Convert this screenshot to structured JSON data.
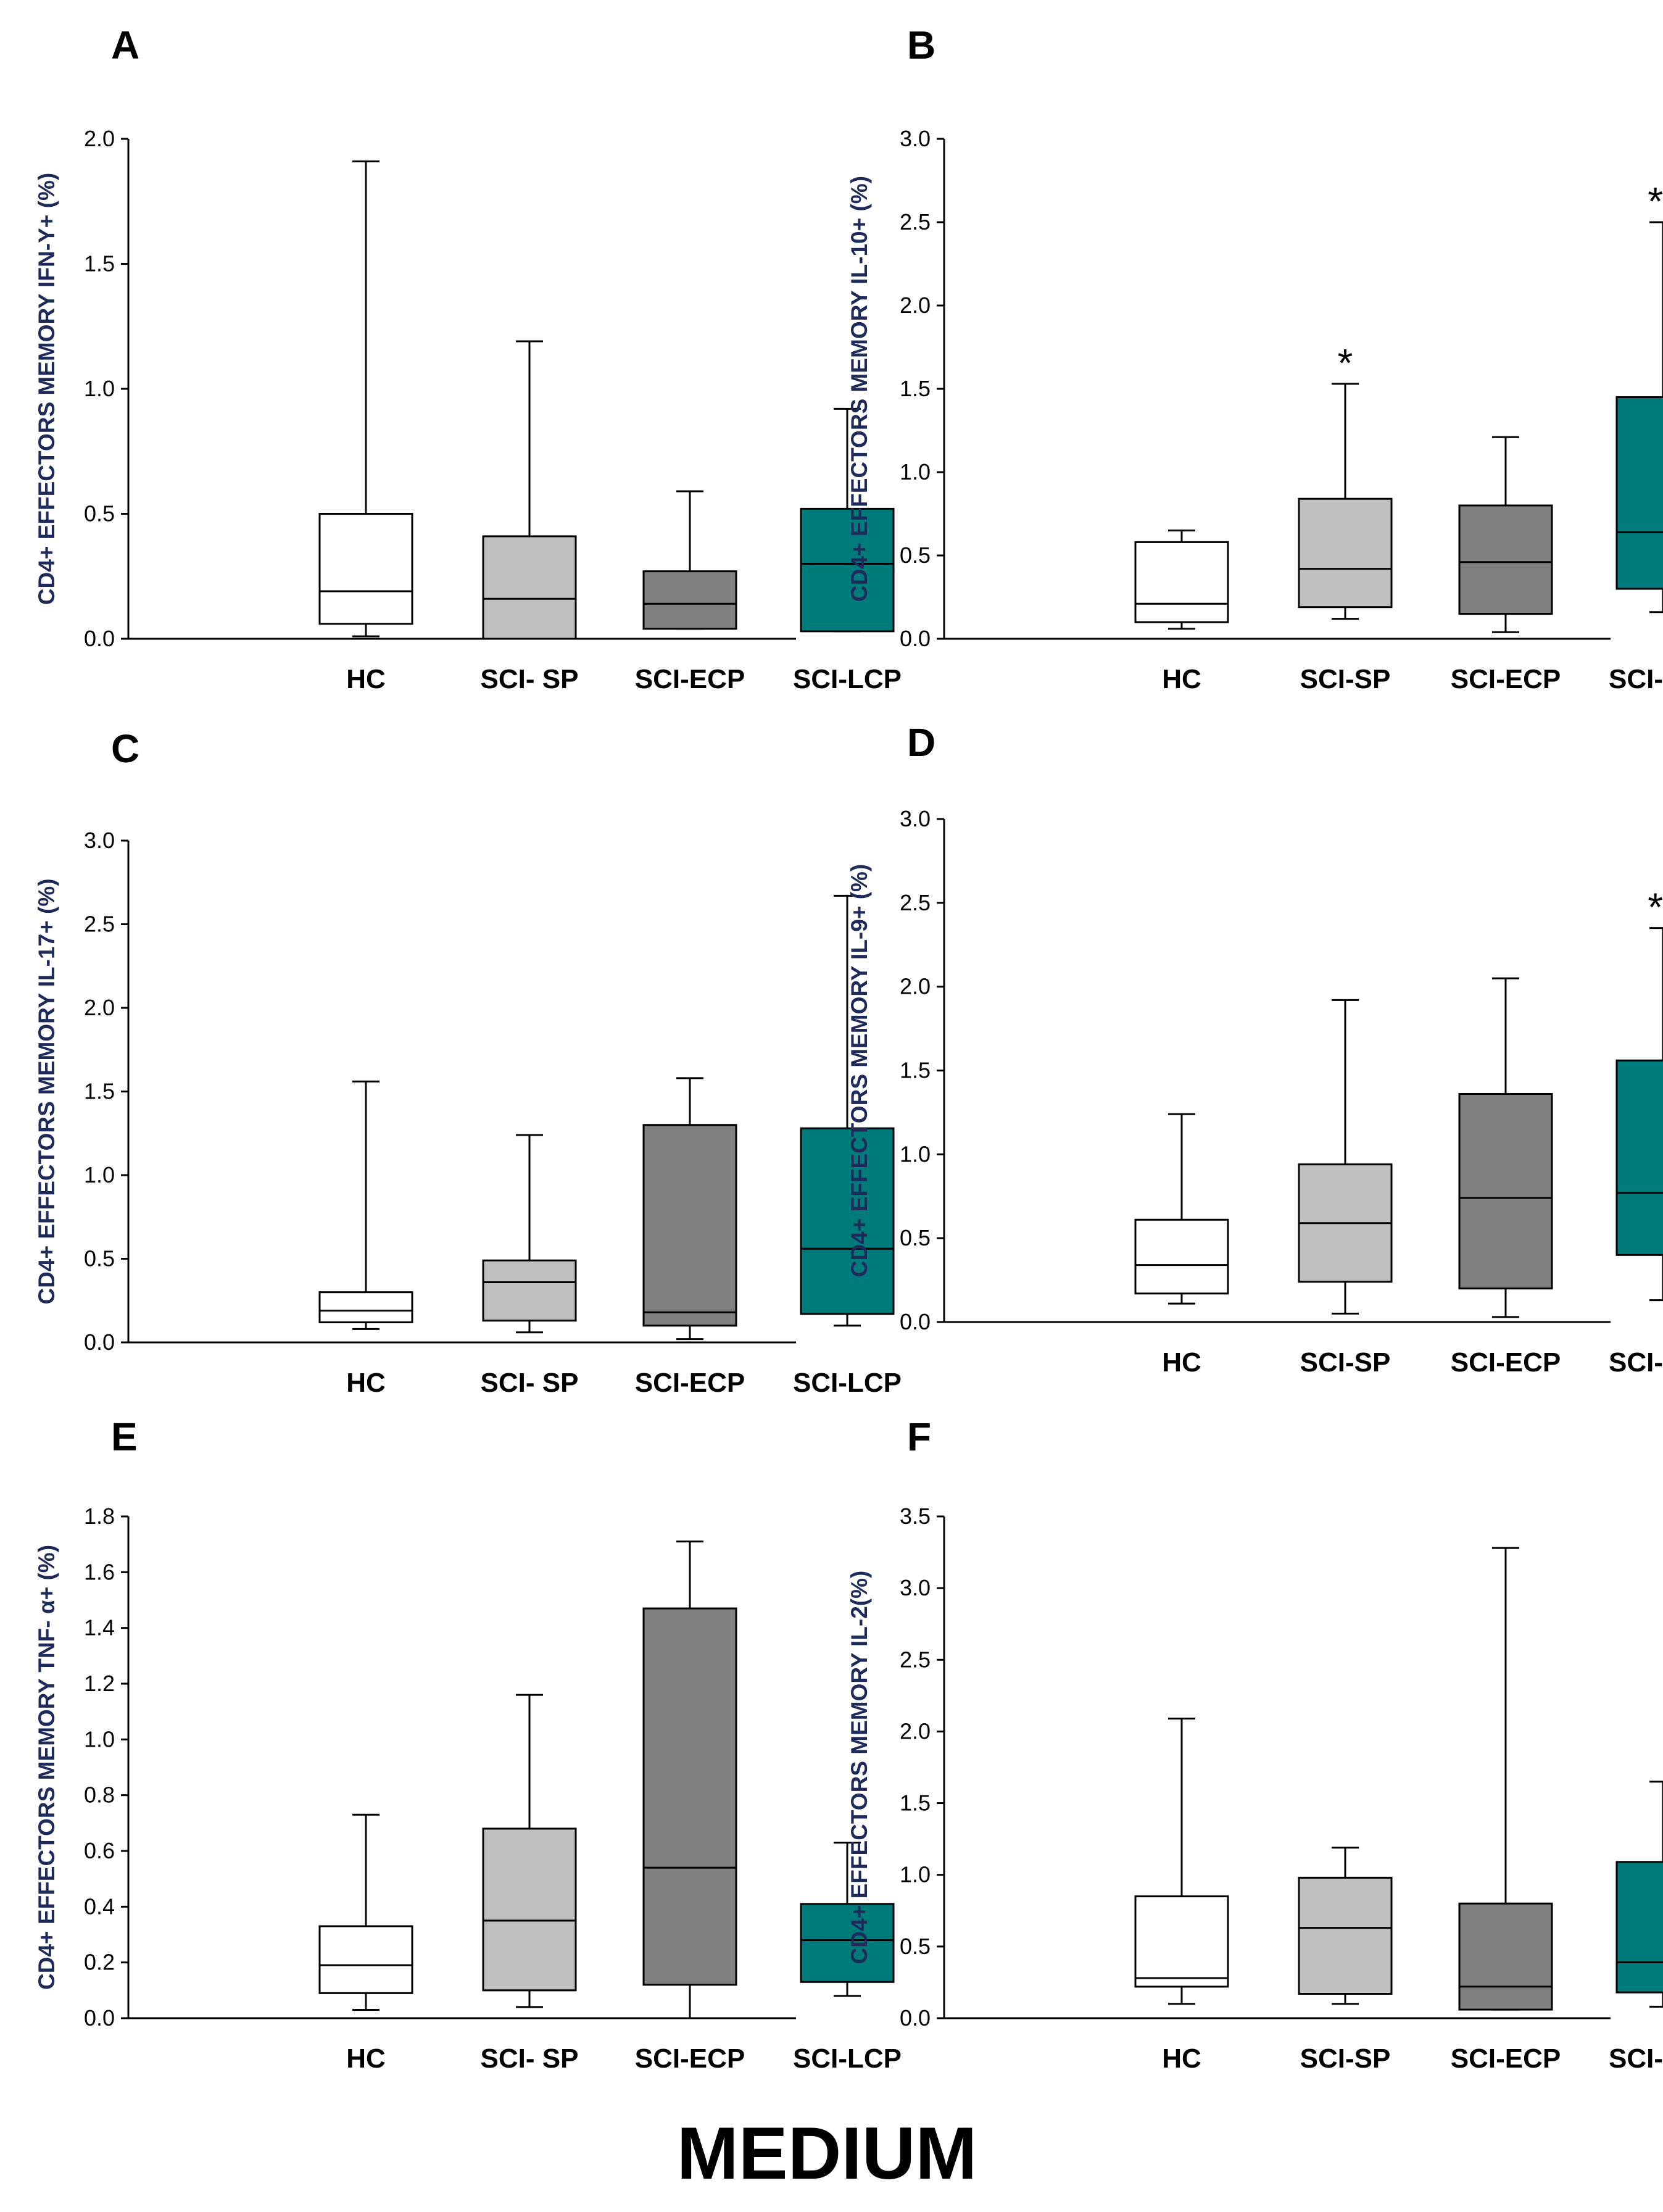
{
  "footer_label": "MEDIUM",
  "colors": {
    "HC": "#ffffff",
    "SCI-SP": "#c0c0c0",
    "SCI-ECP": "#808080",
    "SCI-LCP": "#007b7b",
    "stroke": "#000000"
  },
  "chart_data": [
    {
      "panel": "A",
      "type": "box",
      "ylabel": "CD4+ EFFECTORS MEMORY IFN-Y+ (%)",
      "ylim": [
        0,
        2.0
      ],
      "yticks": [
        "0.0",
        "0.5",
        "1.0",
        "1.5",
        "2.0"
      ],
      "categories": [
        "HC",
        "SCI- SP",
        "SCI-ECP",
        "SCI-LCP"
      ],
      "boxes": [
        {
          "min": 0.01,
          "q1": 0.06,
          "median": 0.19,
          "q3": 0.5,
          "max": 1.91,
          "sig": ""
        },
        {
          "min": 0.0,
          "q1": 0.0,
          "median": 0.16,
          "q3": 0.41,
          "max": 1.19,
          "sig": ""
        },
        {
          "min": 0.04,
          "q1": 0.04,
          "median": 0.14,
          "q3": 0.27,
          "max": 0.59,
          "sig": ""
        },
        {
          "min": 0.03,
          "q1": 0.03,
          "median": 0.3,
          "q3": 0.52,
          "max": 0.92,
          "sig": ""
        }
      ]
    },
    {
      "panel": "B",
      "type": "box",
      "ylabel": "CD4+ EFFECTORS MEMORY IL-10+ (%)",
      "ylim": [
        0,
        3.0
      ],
      "yticks": [
        "0.0",
        "0.5",
        "1.0",
        "1.5",
        "2.0",
        "2.5",
        "3.0"
      ],
      "categories": [
        "HC",
        "SCI-SP",
        "SCI-ECP",
        "SCI-LCP"
      ],
      "boxes": [
        {
          "min": 0.06,
          "q1": 0.1,
          "median": 0.21,
          "q3": 0.58,
          "max": 0.65,
          "sig": ""
        },
        {
          "min": 0.12,
          "q1": 0.19,
          "median": 0.42,
          "q3": 0.84,
          "max": 1.53,
          "sig": "*"
        },
        {
          "min": 0.04,
          "q1": 0.15,
          "median": 0.46,
          "q3": 0.8,
          "max": 1.21,
          "sig": ""
        },
        {
          "min": 0.16,
          "q1": 0.3,
          "median": 0.64,
          "q3": 1.45,
          "max": 2.5,
          "sig": "**"
        }
      ]
    },
    {
      "panel": "C",
      "type": "box",
      "ylabel": "CD4+ EFFECTORS MEMORY IL-17+ (%)",
      "ylim": [
        0,
        3.0
      ],
      "yticks": [
        "0.0",
        "0.5",
        "1.0",
        "1.5",
        "2.0",
        "2.5",
        "3.0"
      ],
      "categories": [
        "HC",
        "SCI- SP",
        "SCI-ECP",
        "SCI-LCP"
      ],
      "boxes": [
        {
          "min": 0.08,
          "q1": 0.12,
          "median": 0.19,
          "q3": 0.3,
          "max": 1.56,
          "sig": ""
        },
        {
          "min": 0.06,
          "q1": 0.13,
          "median": 0.36,
          "q3": 0.49,
          "max": 1.24,
          "sig": ""
        },
        {
          "min": 0.02,
          "q1": 0.1,
          "median": 0.18,
          "q3": 1.3,
          "max": 1.58,
          "sig": ""
        },
        {
          "min": 0.1,
          "q1": 0.17,
          "median": 0.56,
          "q3": 1.28,
          "max": 2.67,
          "sig": ""
        }
      ]
    },
    {
      "panel": "D",
      "type": "box",
      "ylabel": "CD4+ EFFECTORS MEMORY IL-9+ (%)",
      "ylim": [
        0,
        3.0
      ],
      "yticks": [
        "0.0",
        "0.5",
        "1.0",
        "1.5",
        "2.0",
        "2.5",
        "3.0"
      ],
      "categories": [
        "HC",
        "SCI-SP",
        "SCI-ECP",
        "SCI-LCP"
      ],
      "boxes": [
        {
          "min": 0.11,
          "q1": 0.17,
          "median": 0.34,
          "q3": 0.61,
          "max": 1.24,
          "sig": ""
        },
        {
          "min": 0.05,
          "q1": 0.24,
          "median": 0.59,
          "q3": 0.94,
          "max": 1.92,
          "sig": ""
        },
        {
          "min": 0.03,
          "q1": 0.2,
          "median": 0.74,
          "q3": 1.36,
          "max": 2.05,
          "sig": ""
        },
        {
          "min": 0.13,
          "q1": 0.4,
          "median": 0.77,
          "q3": 1.56,
          "max": 2.35,
          "sig": "**"
        }
      ]
    },
    {
      "panel": "E",
      "type": "box",
      "ylabel": "CD4+ EFFECTORS MEMORY TNF- α+ (%)",
      "ylim": [
        0,
        1.8
      ],
      "yticks": [
        "0.0",
        "0.2",
        "0.4",
        "0.6",
        "0.8",
        "1.0",
        "1.2",
        "1.4",
        "1.6",
        "1.8"
      ],
      "categories": [
        "HC",
        "SCI- SP",
        "SCI-ECP",
        "SCI-LCP"
      ],
      "boxes": [
        {
          "min": 0.03,
          "q1": 0.09,
          "median": 0.19,
          "q3": 0.33,
          "max": 0.73,
          "sig": ""
        },
        {
          "min": 0.04,
          "q1": 0.1,
          "median": 0.35,
          "q3": 0.68,
          "max": 1.16,
          "sig": ""
        },
        {
          "min": 0.0,
          "q1": 0.12,
          "median": 0.54,
          "q3": 1.47,
          "max": 1.71,
          "sig": ""
        },
        {
          "min": 0.08,
          "q1": 0.13,
          "median": 0.28,
          "q3": 0.41,
          "max": 0.63,
          "sig": ""
        }
      ]
    },
    {
      "panel": "F",
      "type": "box",
      "ylabel": "CD4+ EFFECTORS MEMORY IL-2(%)",
      "ylim": [
        0,
        3.5
      ],
      "yticks": [
        "0.0",
        "0.5",
        "1.0",
        "1.5",
        "2.0",
        "2.5",
        "3.0",
        "3.5"
      ],
      "categories": [
        "HC",
        "SCI-SP",
        "SCI-ECP",
        "SCI-LCP"
      ],
      "boxes": [
        {
          "min": 0.1,
          "q1": 0.22,
          "median": 0.28,
          "q3": 0.85,
          "max": 2.09,
          "sig": ""
        },
        {
          "min": 0.1,
          "q1": 0.17,
          "median": 0.63,
          "q3": 0.98,
          "max": 1.19,
          "sig": ""
        },
        {
          "min": 0.06,
          "q1": 0.06,
          "median": 0.22,
          "q3": 0.8,
          "max": 3.28,
          "sig": ""
        },
        {
          "min": 0.08,
          "q1": 0.18,
          "median": 0.39,
          "q3": 1.09,
          "max": 1.65,
          "sig": ""
        }
      ]
    }
  ]
}
